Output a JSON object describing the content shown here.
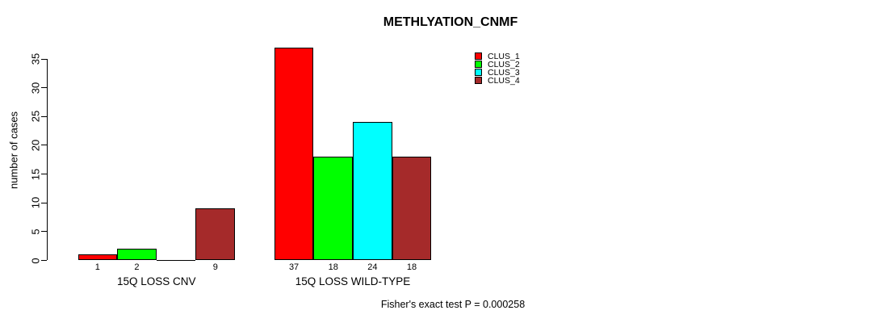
{
  "title": "METHLYATION_CNMF",
  "ylabel": "number of cases",
  "footer": "Fisher's exact test P = 0.000258",
  "legend": [
    {
      "label": "CLUS_1",
      "color": "#FF0000"
    },
    {
      "label": "CLUS_2",
      "color": "#00FF00"
    },
    {
      "label": "CLUS_3",
      "color": "#00FFFF"
    },
    {
      "label": "CLUS_4",
      "color": "#A52A2A"
    }
  ],
  "chart_data": {
    "type": "bar",
    "title": "METHLYATION_CNMF",
    "xlabel": "",
    "ylabel": "number of cases",
    "ylim": [
      0,
      37
    ],
    "yticks": [
      0,
      5,
      10,
      15,
      20,
      25,
      30,
      35
    ],
    "grid": false,
    "legend_position": "top-right",
    "categories": [
      "15Q LOSS CNV",
      "15Q LOSS WILD-TYPE"
    ],
    "series": [
      {
        "name": "CLUS_1",
        "color": "#FF0000",
        "values": [
          1,
          37
        ]
      },
      {
        "name": "CLUS_2",
        "color": "#00FF00",
        "values": [
          2,
          18
        ]
      },
      {
        "name": "CLUS_3",
        "color": "#00FFFF",
        "values": [
          0,
          24
        ]
      },
      {
        "name": "CLUS_4",
        "color": "#A52A2A",
        "values": [
          9,
          18
        ]
      }
    ],
    "bar_labels": [
      [
        "1",
        "2",
        "",
        "9"
      ],
      [
        "37",
        "18",
        "24",
        "18"
      ]
    ],
    "annotation": "Fisher's exact test P = 0.000258"
  }
}
